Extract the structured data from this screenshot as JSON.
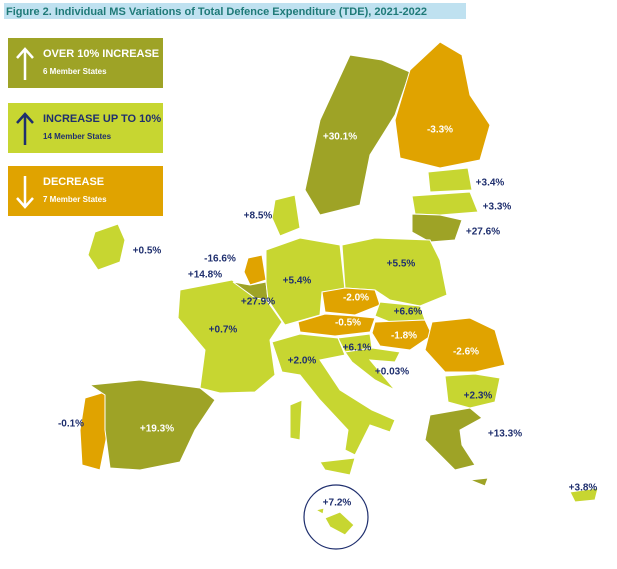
{
  "title": "Figure 2. Individual MS Variations of Total Defence Expenditure (TDE), 2021-2022",
  "legend": [
    {
      "label": "OVER 10% INCREASE",
      "note": "6 Member States"
    },
    {
      "label": "INCREASE UP TO 10%",
      "note": "14 Member States"
    },
    {
      "label": "DECREASE",
      "note": "7 Member States"
    }
  ],
  "labels": [
    "+30.1%",
    "-3.3%",
    "+3.4%",
    "+3.3%",
    "+27.6%",
    "+8.5%",
    "+0.5%",
    "-16.6%",
    "+14.8%",
    "+27.9%",
    "+5.4%",
    "+5.5%",
    "-2.0%",
    "+6.6%",
    "-0.5%",
    "-1.8%",
    "+0.7%",
    "+6.1%",
    "-2.6%",
    "+2.0%",
    "+0.03%",
    "+2.3%",
    "-0.1%",
    "+19.3%",
    "+13.3%",
    "+3.8%",
    "+7.2%"
  ]
}
